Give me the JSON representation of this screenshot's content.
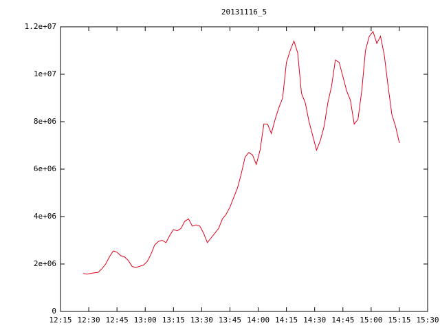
{
  "chart_data": {
    "type": "line",
    "title": "20131116_5",
    "x": [
      "12:27",
      "12:29",
      "12:31",
      "12:33",
      "12:35",
      "12:37",
      "12:39",
      "12:41",
      "12:43",
      "12:45",
      "12:47",
      "12:49",
      "12:51",
      "12:53",
      "12:55",
      "12:57",
      "12:59",
      "13:01",
      "13:03",
      "13:05",
      "13:07",
      "13:09",
      "13:11",
      "13:13",
      "13:15",
      "13:17",
      "13:19",
      "13:21",
      "13:23",
      "13:25",
      "13:27",
      "13:29",
      "13:31",
      "13:33",
      "13:35",
      "13:37",
      "13:39",
      "13:41",
      "13:43",
      "13:45",
      "13:47",
      "13:49",
      "13:51",
      "13:53",
      "13:55",
      "13:57",
      "13:59",
      "14:01",
      "14:03",
      "14:05",
      "14:07",
      "14:09",
      "14:11",
      "14:13",
      "14:15",
      "14:17",
      "14:19",
      "14:21",
      "14:23",
      "14:25",
      "14:27",
      "14:29",
      "14:31",
      "14:33",
      "14:35",
      "14:37",
      "14:39",
      "14:41",
      "14:43",
      "14:45",
      "14:47",
      "14:49",
      "14:51",
      "14:53",
      "14:55",
      "14:57",
      "14:59",
      "15:01",
      "15:03",
      "15:05",
      "15:07",
      "15:09",
      "15:11",
      "15:13",
      "15:15"
    ],
    "series": [
      {
        "color": "#e0001b",
        "values": [
          1600000,
          1570000,
          1600000,
          1630000,
          1650000,
          1800000,
          2000000,
          2300000,
          2550000,
          2500000,
          2350000,
          2300000,
          2150000,
          1900000,
          1850000,
          1900000,
          1950000,
          2100000,
          2400000,
          2800000,
          2950000,
          3000000,
          2900000,
          3200000,
          3450000,
          3400000,
          3500000,
          3800000,
          3900000,
          3600000,
          3650000,
          3600000,
          3300000,
          2900000,
          3100000,
          3300000,
          3500000,
          3900000,
          4100000,
          4400000,
          4800000,
          5200000,
          5800000,
          6500000,
          6700000,
          6600000,
          6200000,
          6800000,
          7900000,
          7900000,
          7500000,
          8100000,
          8600000,
          9000000,
          10500000,
          11000000,
          11400000,
          10900000,
          9200000,
          8800000,
          8000000,
          7400000,
          6800000,
          7200000,
          7800000,
          8800000,
          9500000,
          10600000,
          10500000,
          9900000,
          9300000,
          8900000,
          7900000,
          8100000,
          9300000,
          11000000,
          11600000,
          11800000,
          11300000,
          11600000,
          10800000,
          9500000,
          8300000,
          7800000,
          7100000
        ]
      }
    ],
    "xlim": [
      "12:15",
      "15:30"
    ],
    "xticks": [
      "12:15",
      "12:30",
      "12:45",
      "13:00",
      "13:15",
      "13:30",
      "13:45",
      "14:00",
      "14:15",
      "14:30",
      "14:45",
      "15:00",
      "15:15",
      "15:30"
    ],
    "ylim": [
      0,
      12000000
    ],
    "yticks": [
      0,
      {
        "value": 2000000,
        "label": "2e+06"
      },
      {
        "value": 4000000,
        "label": "4e+06"
      },
      {
        "value": 6000000,
        "label": "6e+06"
      },
      {
        "value": 8000000,
        "label": "8e+06"
      },
      {
        "value": 10000000,
        "label": "1e+07"
      },
      {
        "value": 12000000,
        "label": "1.2e+07"
      }
    ]
  }
}
